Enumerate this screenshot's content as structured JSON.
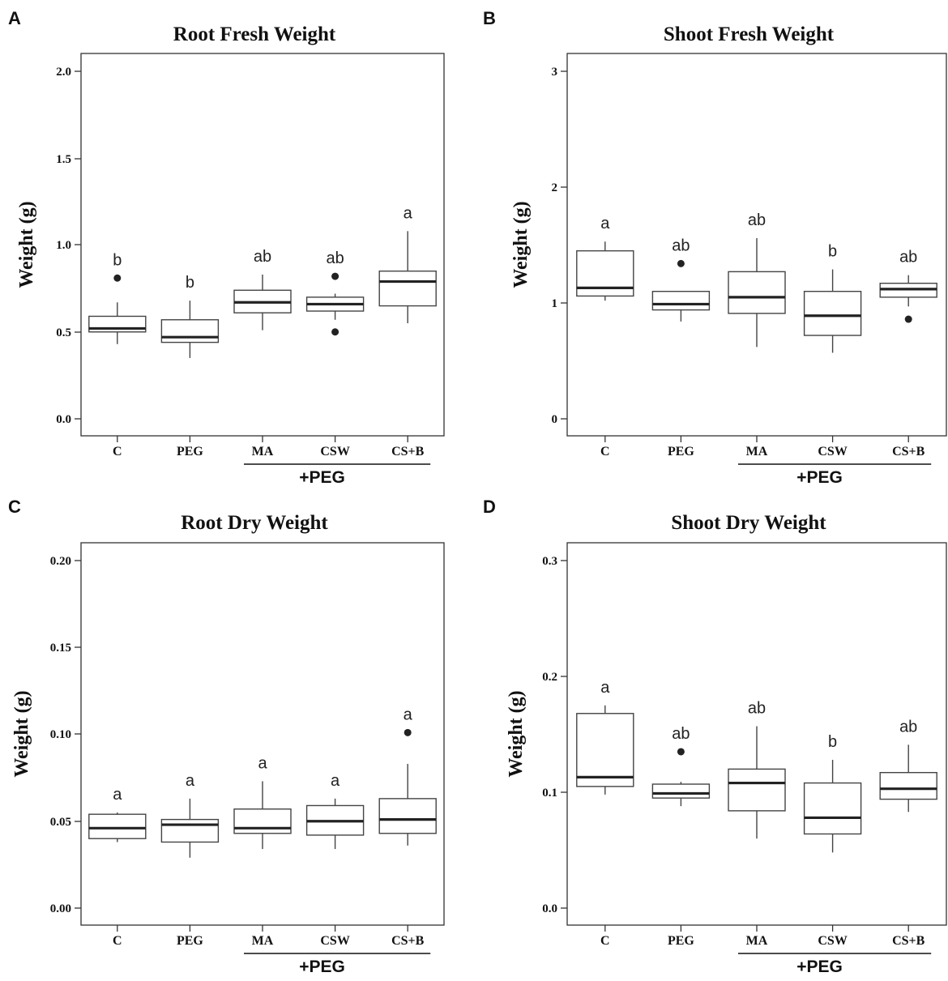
{
  "bracket_label": "+PEG",
  "chart_data": [
    {
      "type": "box",
      "panel": "A",
      "title": "Root Fresh Weight",
      "ylabel": "Weight (g)",
      "ylim": [
        -0.05,
        2.1
      ],
      "yticks": [
        "0.0",
        "0.5",
        "1.0",
        "1.5",
        "2.0"
      ],
      "categories": [
        "C",
        "PEG",
        "MA",
        "CSW",
        "CS+B"
      ],
      "boxes": [
        {
          "low": 0.43,
          "q1": 0.5,
          "median": 0.52,
          "q3": 0.59,
          "high": 0.67,
          "outliers": [
            0.81
          ],
          "letter": "b"
        },
        {
          "low": 0.35,
          "q1": 0.44,
          "median": 0.47,
          "q3": 0.57,
          "high": 0.68,
          "outliers": [],
          "letter": "b"
        },
        {
          "low": 0.51,
          "q1": 0.61,
          "median": 0.67,
          "q3": 0.74,
          "high": 0.83,
          "outliers": [],
          "letter": "ab"
        },
        {
          "low": 0.57,
          "q1": 0.62,
          "median": 0.66,
          "q3": 0.7,
          "high": 0.72,
          "outliers": [
            0.82,
            0.5
          ],
          "letter": "ab"
        },
        {
          "low": 0.55,
          "q1": 0.65,
          "median": 0.79,
          "q3": 0.85,
          "high": 1.08,
          "outliers": [],
          "letter": "a"
        }
      ]
    },
    {
      "type": "box",
      "panel": "B",
      "title": "Shoot Fresh Weight",
      "ylabel": "Weight (g)",
      "ylim": [
        -0.15,
        3.15
      ],
      "yticks": [
        "0",
        "1",
        "2",
        "3"
      ],
      "categories": [
        "C",
        "PEG",
        "MA",
        "CSW",
        "CS+B"
      ],
      "boxes": [
        {
          "low": 1.02,
          "q1": 1.06,
          "median": 1.13,
          "q3": 1.45,
          "high": 1.53,
          "outliers": [],
          "letter": "a"
        },
        {
          "low": 0.84,
          "q1": 0.94,
          "median": 0.99,
          "q3": 1.1,
          "high": 1.1,
          "outliers": [
            1.34
          ],
          "letter": "ab"
        },
        {
          "low": 0.62,
          "q1": 0.91,
          "median": 1.05,
          "q3": 1.27,
          "high": 1.56,
          "outliers": [],
          "letter": "ab"
        },
        {
          "low": 0.57,
          "q1": 0.72,
          "median": 0.89,
          "q3": 1.1,
          "high": 1.29,
          "outliers": [],
          "letter": "b"
        },
        {
          "low": 0.97,
          "q1": 1.05,
          "median": 1.12,
          "q3": 1.17,
          "high": 1.24,
          "outliers": [
            0.86
          ],
          "letter": "ab"
        }
      ]
    },
    {
      "type": "box",
      "panel": "C",
      "title": "Root Dry Weight",
      "ylabel": "Weight (g)",
      "ylim": [
        -0.005,
        0.21
      ],
      "yticks": [
        "0.00",
        "0.05",
        "0.10",
        "0.15",
        "0.20"
      ],
      "categories": [
        "C",
        "PEG",
        "MA",
        "CSW",
        "CS+B"
      ],
      "boxes": [
        {
          "low": 0.038,
          "q1": 0.04,
          "median": 0.046,
          "q3": 0.054,
          "high": 0.055,
          "outliers": [],
          "letter": "a"
        },
        {
          "low": 0.029,
          "q1": 0.038,
          "median": 0.048,
          "q3": 0.051,
          "high": 0.063,
          "outliers": [],
          "letter": "a"
        },
        {
          "low": 0.034,
          "q1": 0.043,
          "median": 0.046,
          "q3": 0.057,
          "high": 0.073,
          "outliers": [],
          "letter": "a"
        },
        {
          "low": 0.034,
          "q1": 0.042,
          "median": 0.05,
          "q3": 0.059,
          "high": 0.063,
          "outliers": [],
          "letter": "a"
        },
        {
          "low": 0.036,
          "q1": 0.043,
          "median": 0.051,
          "q3": 0.063,
          "high": 0.083,
          "outliers": [
            0.101
          ],
          "letter": "a"
        }
      ]
    },
    {
      "type": "box",
      "panel": "D",
      "title": "Shoot Dry Weight",
      "ylabel": "Weight (g)",
      "ylim": [
        -0.015,
        0.315
      ],
      "yticks": [
        "0.0",
        "0.1",
        "0.2",
        "0.3"
      ],
      "categories": [
        "C",
        "PEG",
        "MA",
        "CSW",
        "CS+B"
      ],
      "boxes": [
        {
          "low": 0.098,
          "q1": 0.105,
          "median": 0.113,
          "q3": 0.168,
          "high": 0.175,
          "outliers": [],
          "letter": "a"
        },
        {
          "low": 0.088,
          "q1": 0.095,
          "median": 0.099,
          "q3": 0.107,
          "high": 0.109,
          "outliers": [
            0.135
          ],
          "letter": "ab"
        },
        {
          "low": 0.06,
          "q1": 0.084,
          "median": 0.108,
          "q3": 0.12,
          "high": 0.157,
          "outliers": [],
          "letter": "ab"
        },
        {
          "low": 0.048,
          "q1": 0.064,
          "median": 0.078,
          "q3": 0.108,
          "high": 0.128,
          "outliers": [],
          "letter": "b"
        },
        {
          "low": 0.083,
          "q1": 0.094,
          "median": 0.103,
          "q3": 0.117,
          "high": 0.141,
          "outliers": [],
          "letter": "ab"
        }
      ]
    }
  ]
}
